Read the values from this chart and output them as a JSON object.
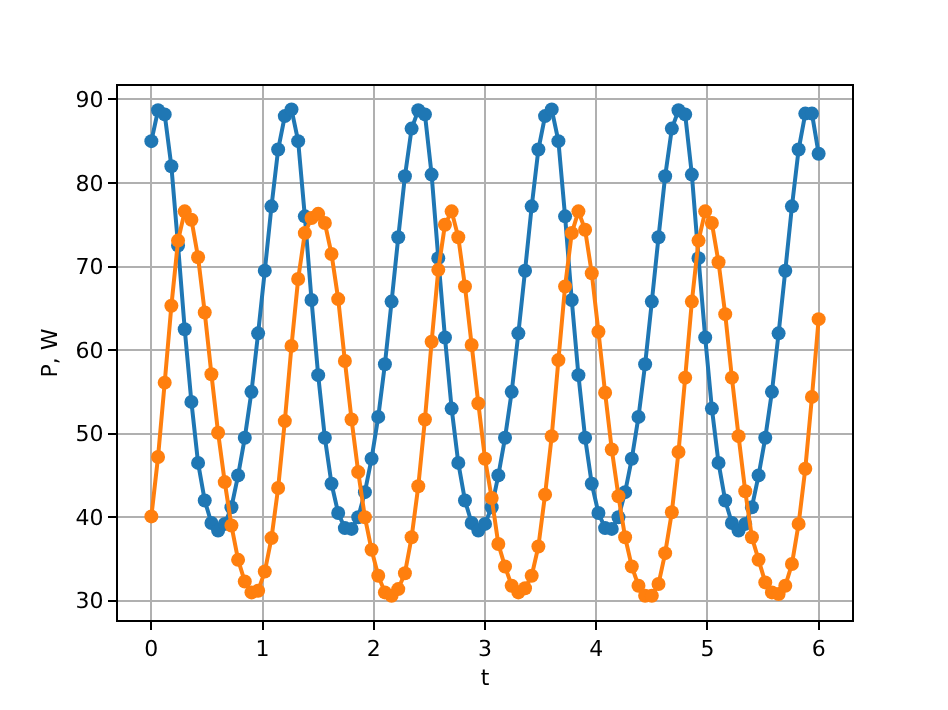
{
  "chart_data": {
    "type": "line",
    "xlabel": "t",
    "ylabel": "P, W",
    "x": [
      0,
      0.06,
      0.12,
      0.18,
      0.24,
      0.3,
      0.36,
      0.42,
      0.48,
      0.54,
      0.6,
      0.66,
      0.72,
      0.78,
      0.84,
      0.9,
      0.96,
      1.02,
      1.08,
      1.14,
      1.2,
      1.26,
      1.32,
      1.38,
      1.44,
      1.5,
      1.56,
      1.62,
      1.68,
      1.74,
      1.8,
      1.86,
      1.92,
      1.98,
      2.04,
      2.1,
      2.16,
      2.22,
      2.28,
      2.34,
      2.4,
      2.46,
      2.52,
      2.58,
      2.64,
      2.7,
      2.76,
      2.82,
      2.88,
      2.94,
      3.0,
      3.06,
      3.12,
      3.18,
      3.24,
      3.3,
      3.36,
      3.42,
      3.48,
      3.54,
      3.6,
      3.66,
      3.72,
      3.78,
      3.84,
      3.9,
      3.96,
      4.02,
      4.08,
      4.14,
      4.2,
      4.26,
      4.32,
      4.38,
      4.44,
      4.5,
      4.56,
      4.62,
      4.68,
      4.74,
      4.8,
      4.86,
      4.92,
      4.98,
      5.04,
      5.1,
      5.16,
      5.22,
      5.28,
      5.34,
      5.4,
      5.46,
      5.52,
      5.58,
      5.64,
      5.7,
      5.76,
      5.82,
      5.88,
      5.94,
      6.0
    ],
    "series": [
      {
        "color": "#1f77b4",
        "values": [
          85.0,
          88.7,
          88.2,
          82.0,
          72.5,
          62.5,
          53.8,
          46.5,
          42.0,
          39.3,
          38.4,
          39.2,
          41.2,
          45.0,
          49.5,
          55.0,
          62.0,
          69.5,
          77.2,
          84.0,
          88.0,
          88.8,
          85.0,
          76.0,
          66.0,
          57.0,
          49.5,
          44.0,
          40.5,
          38.7,
          38.6,
          40.0,
          43.0,
          47.0,
          52.0,
          58.3,
          65.8,
          73.5,
          80.8,
          86.5,
          88.7,
          88.2,
          81.0,
          71.0,
          61.5,
          53.0,
          46.5,
          42.0,
          39.3,
          38.4,
          39.2,
          41.2,
          45.0,
          49.5,
          55.0,
          62.0,
          69.5,
          77.2,
          84.0,
          88.0,
          88.8,
          85.0,
          76.0,
          66.0,
          57.0,
          49.5,
          44.0,
          40.5,
          38.7,
          38.6,
          40.0,
          43.0,
          47.0,
          52.0,
          58.3,
          65.8,
          73.5,
          80.8,
          86.5,
          88.7,
          88.2,
          81.0,
          71.0,
          61.5,
          53.0,
          46.5,
          42.0,
          39.3,
          38.4,
          39.2,
          41.2,
          45.0,
          49.5,
          55.0,
          62.0,
          69.5,
          77.2,
          84.0,
          88.3,
          88.3,
          83.5
        ]
      },
      {
        "color": "#ff7f0e",
        "values": [
          40.1,
          47.2,
          56.1,
          65.3,
          73.1,
          76.6,
          75.6,
          71.1,
          64.5,
          57.1,
          50.1,
          44.2,
          39.0,
          34.9,
          32.3,
          31.0,
          31.2,
          33.5,
          37.5,
          43.5,
          51.5,
          60.5,
          68.5,
          74.0,
          75.8,
          76.3,
          75.2,
          71.5,
          66.1,
          58.7,
          51.7,
          45.4,
          40.0,
          36.1,
          33.0,
          31.0,
          30.6,
          31.4,
          33.3,
          37.6,
          43.7,
          51.7,
          61.0,
          69.6,
          75.0,
          76.6,
          73.5,
          67.6,
          60.6,
          53.6,
          47.0,
          42.3,
          36.8,
          34.1,
          31.8,
          31.0,
          31.5,
          33.0,
          36.5,
          42.7,
          49.7,
          58.8,
          67.6,
          74.0,
          76.6,
          74.4,
          69.2,
          62.2,
          54.9,
          48.1,
          42.5,
          37.6,
          34.1,
          31.8,
          30.6,
          30.6,
          32.0,
          35.7,
          40.6,
          47.8,
          56.7,
          65.8,
          73.1,
          76.6,
          75.2,
          70.5,
          64.3,
          56.7,
          49.7,
          43.1,
          37.6,
          34.9,
          32.2,
          31.0,
          30.8,
          31.8,
          34.4,
          39.2,
          45.8,
          54.4,
          63.7
        ]
      }
    ],
    "xlim": [
      -0.3,
      6.3
    ],
    "xticks": [
      0,
      1,
      2,
      3,
      4,
      5,
      6
    ],
    "ylim": [
      27.7,
      91.6
    ],
    "yticks": [
      30,
      40,
      50,
      60,
      70,
      80,
      90
    ],
    "grid": true,
    "marker": "circle",
    "line_style": "solid"
  }
}
